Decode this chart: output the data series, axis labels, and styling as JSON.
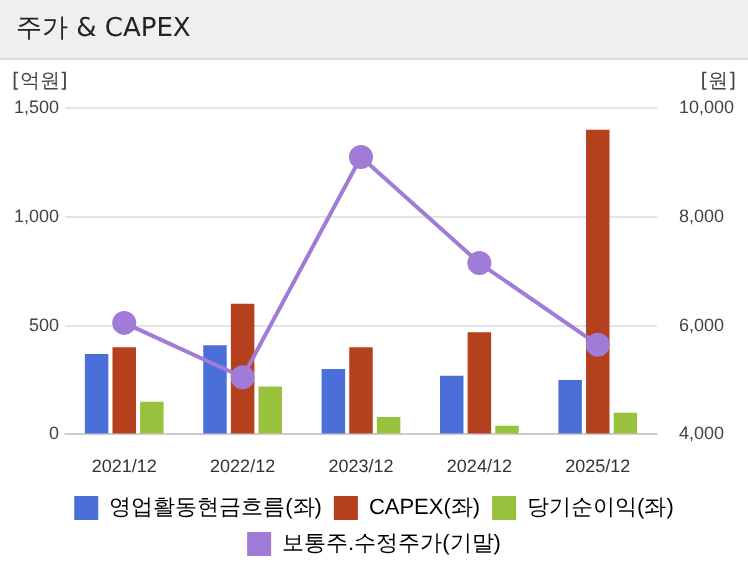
{
  "chart_data": {
    "type": "bar",
    "title": "주가 & CAPEX",
    "ylabel": "[억원]",
    "y2label": "[원]",
    "categories": [
      "2021/12",
      "2022/12",
      "2023/12",
      "2024/12",
      "2025/12"
    ],
    "series": [
      {
        "name": "영업활동현금흐름(좌)",
        "color": "#4a6fd8",
        "values": [
          370,
          410,
          300,
          270,
          250
        ]
      },
      {
        "name": "CAPEX(좌)",
        "color": "#b5401e",
        "values": [
          400,
          600,
          400,
          470,
          1400
        ]
      },
      {
        "name": "당기순이익(좌)",
        "color": "#98c13d",
        "values": [
          150,
          220,
          80,
          40,
          100
        ]
      },
      {
        "name": "보통주.수정주가(기말)",
        "color": "#a07bd8",
        "type": "line",
        "axis": "y2",
        "marker": "circle",
        "values": [
          6050,
          5050,
          9100,
          7150,
          5650
        ]
      }
    ],
    "ylim": [
      0,
      1500
    ],
    "yticks": [
      0,
      500,
      {
        "value": 1000,
        "label": "1,000"
      },
      {
        "value": 1500,
        "label": "1,500"
      }
    ],
    "y2lim": [
      4000,
      10000
    ],
    "y2ticks": [
      {
        "value": 4000,
        "label": "4,000"
      },
      {
        "value": 6000,
        "label": "6,000"
      },
      {
        "value": 8000,
        "label": "8,000"
      },
      {
        "value": 10000,
        "label": "10,000"
      }
    ],
    "grid": "y",
    "legend": "bottom"
  }
}
